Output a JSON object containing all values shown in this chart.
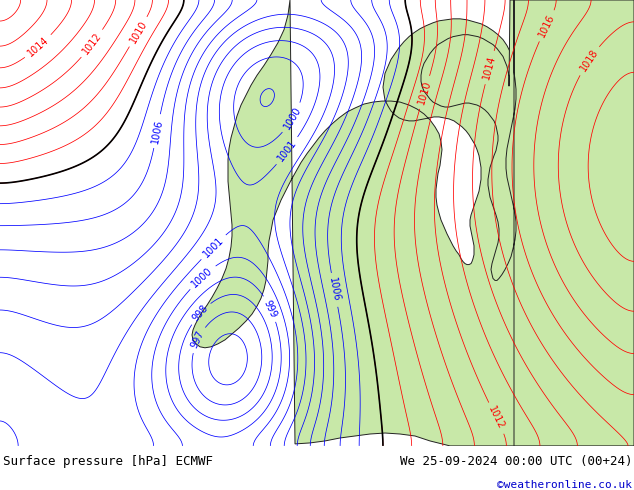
{
  "title_left": "Surface pressure [hPa] ECMWF",
  "title_right": "We 25-09-2024 00:00 UTC (00+24)",
  "credit": "©weatheronline.co.uk",
  "bg_color": "#d0d4d8",
  "land_color": "#c8e8a8",
  "border_color": "#222222",
  "label_fontsize": 7,
  "title_fontsize": 9,
  "credit_color": "#0000cc",
  "blue_line_color": "#0000ff",
  "red_line_color": "#ff0000",
  "black_line_color": "#000000"
}
